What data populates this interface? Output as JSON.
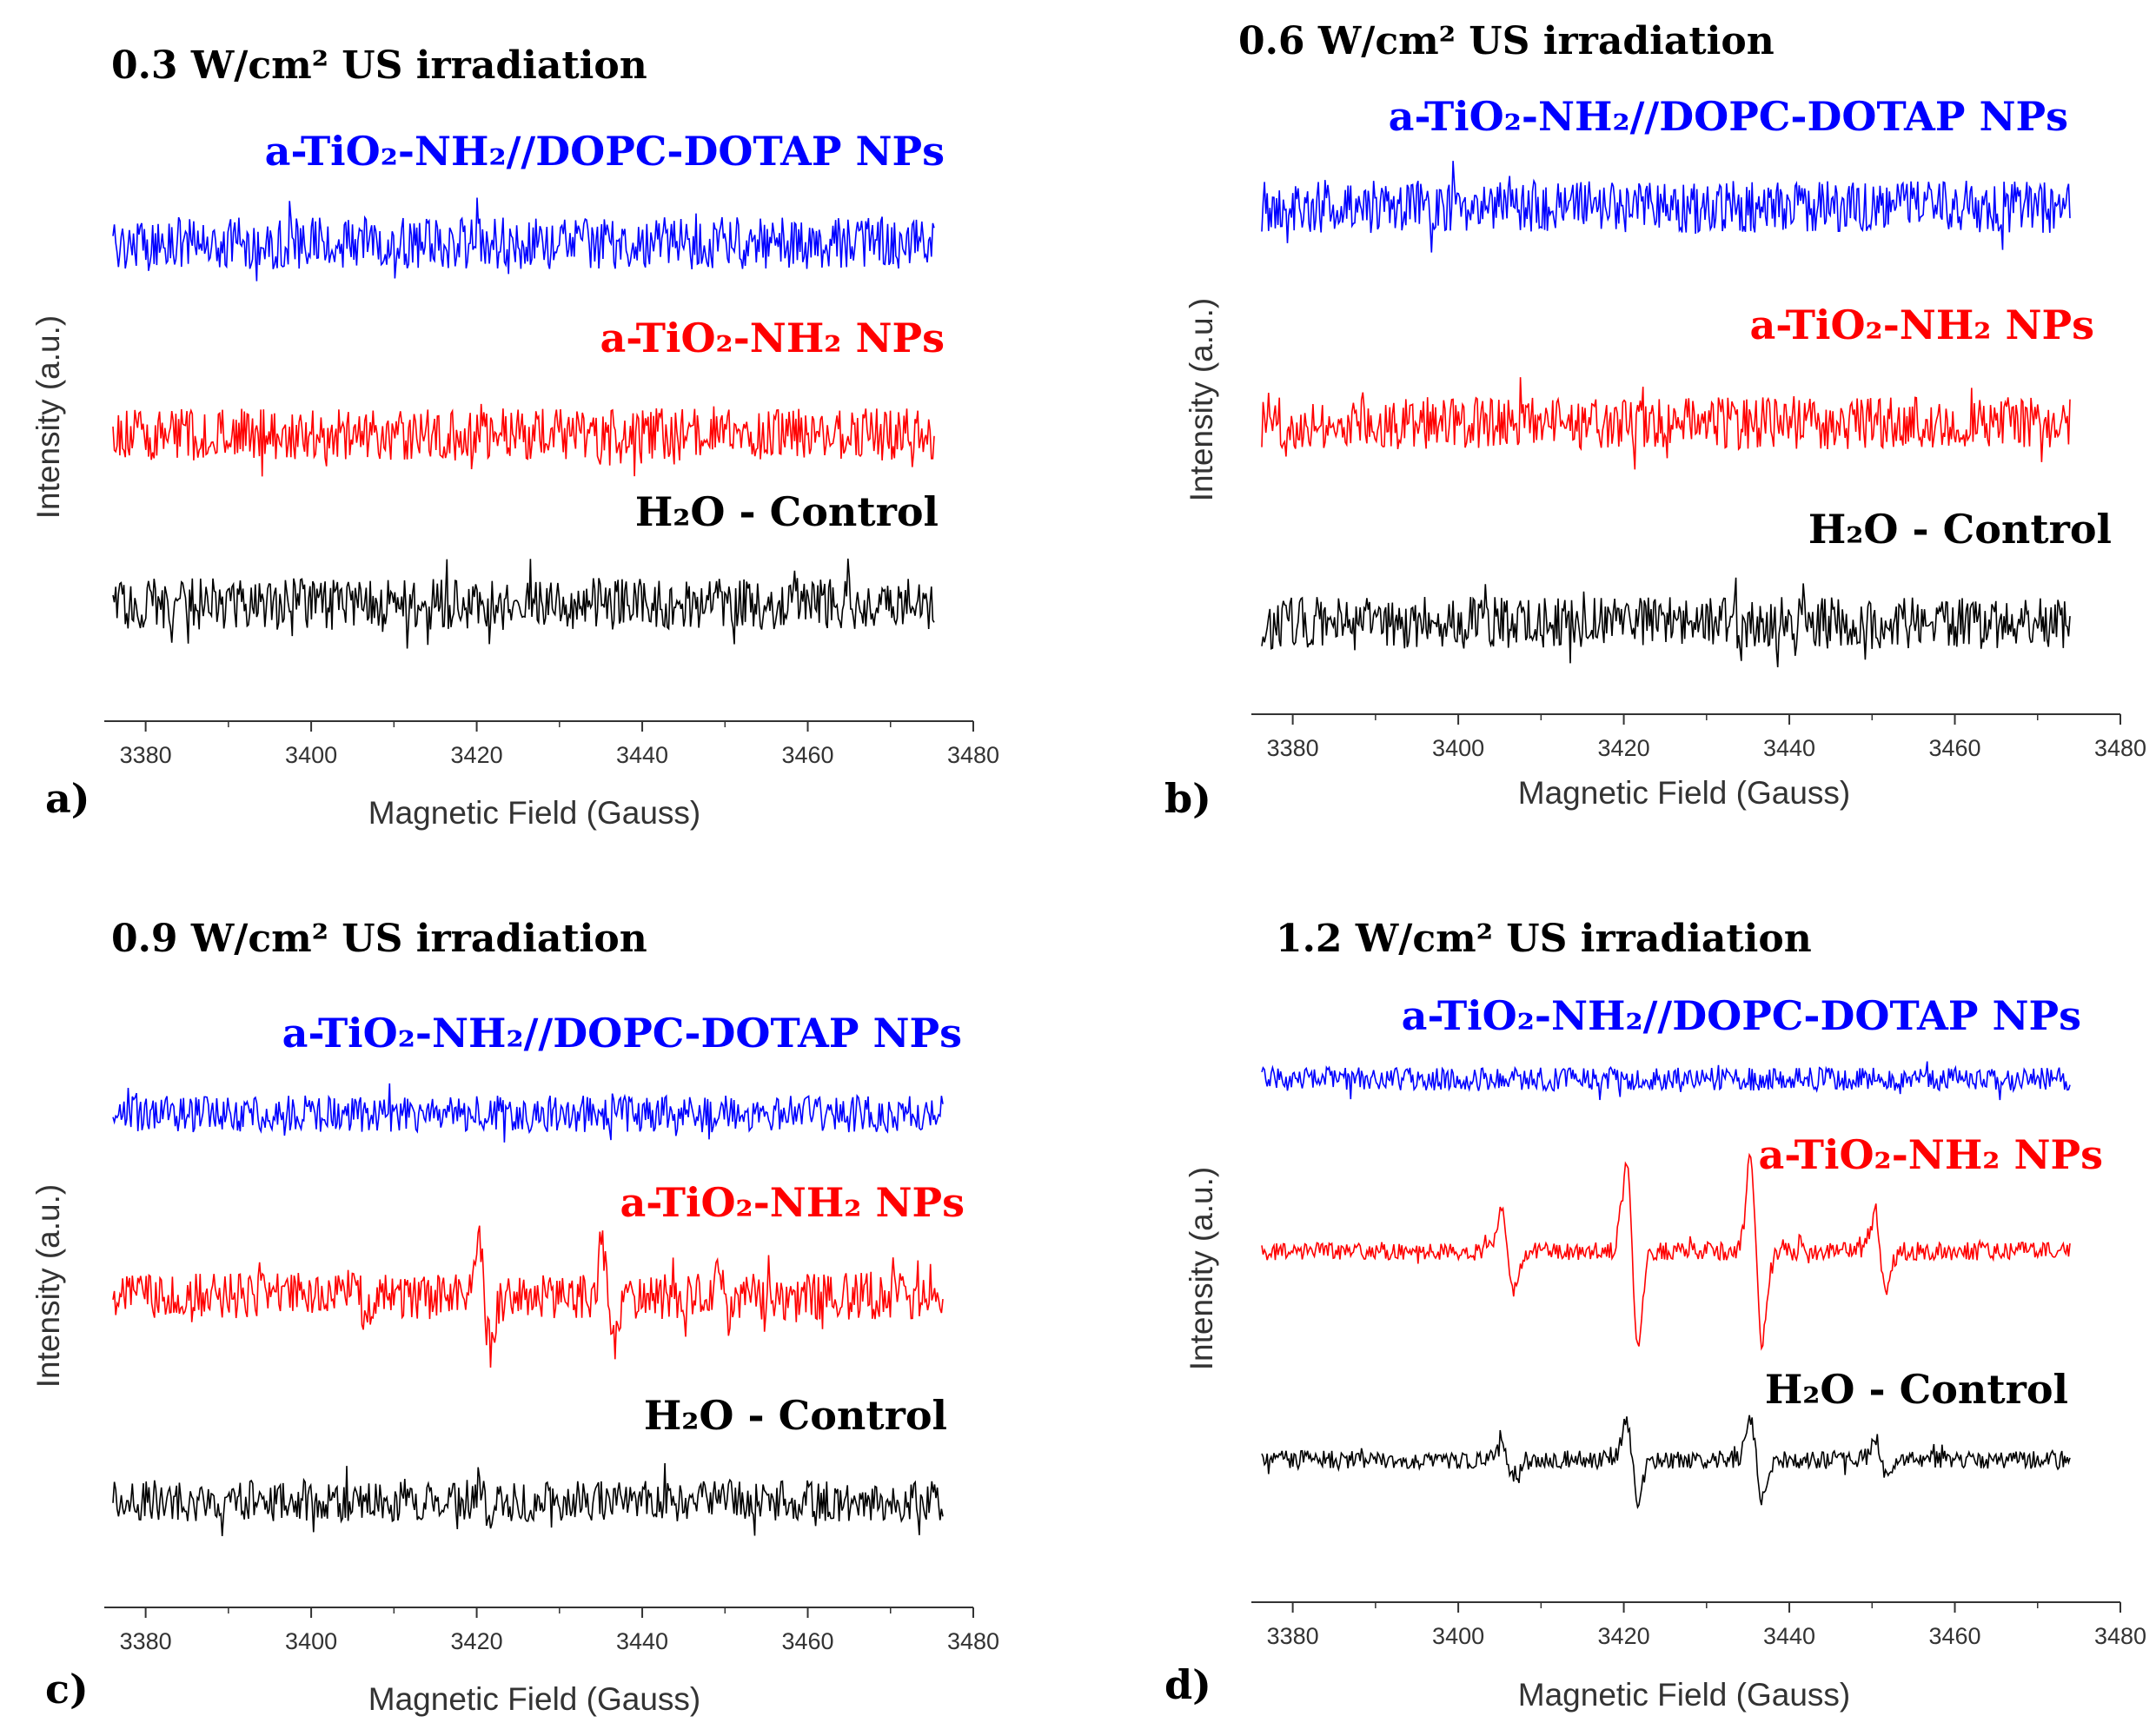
{
  "chart_data": [
    {
      "type": "line",
      "panel": "a)",
      "title": "0.3 W/cm² US irradiation",
      "xlabel": "Magnetic Field (Gauss)",
      "ylabel": "Intensity (a.u.)",
      "xlim": [
        3375,
        3480
      ],
      "x_ticks": [
        3380,
        3400,
        3420,
        3440,
        3460,
        3480
      ],
      "series": [
        {
          "name": "a-TiO₂-NH₂//DOPC-DOTAP NPs",
          "color": "#0000ff",
          "noise": 1.0,
          "peaks": []
        },
        {
          "name": "a-TiO₂-NH₂ NPs",
          "color": "#ff0000",
          "noise": 1.0,
          "peaks": []
        },
        {
          "name": "H₂O - Control",
          "color": "#000000",
          "noise": 1.0,
          "peaks": []
        }
      ]
    },
    {
      "type": "line",
      "panel": "b)",
      "title": "0.6 W/cm² US irradiation",
      "xlabel": "Magnetic Field (Gauss)",
      "ylabel": "Intensity (a.u.)",
      "xlim": [
        3375,
        3480
      ],
      "x_ticks": [
        3380,
        3400,
        3420,
        3440,
        3460,
        3480
      ],
      "series": [
        {
          "name": "a-TiO₂-NH₂//DOPC-DOTAP NPs",
          "color": "#0000ff",
          "noise": 1.0,
          "peaks": []
        },
        {
          "name": "a-TiO₂-NH₂ NPs",
          "color": "#ff0000",
          "noise": 1.0,
          "peaks": []
        },
        {
          "name": "H₂O - Control",
          "color": "#000000",
          "noise": 1.0,
          "peaks": []
        }
      ]
    },
    {
      "type": "line",
      "panel": "c)",
      "title": "0.9 W/cm² US irradiation",
      "xlabel": "Magnetic Field (Gauss)",
      "ylabel": "Intensity (a.u.)",
      "xlim": [
        3375,
        3480
      ],
      "x_ticks": [
        3380,
        3400,
        3420,
        3440,
        3460,
        3480
      ],
      "series": [
        {
          "name": "a-TiO₂-NH₂//DOPC-DOTAP NPs",
          "color": "#0000ff",
          "noise": 0.7,
          "peaks": []
        },
        {
          "name": "a-TiO₂-NH₂ NPs",
          "color": "#ff0000",
          "noise": 0.9,
          "peaks": [
            {
              "x": 3406,
              "amp": 0.9
            },
            {
              "x": 3421,
              "amp": 1.9
            },
            {
              "x": 3436,
              "amp": 1.8
            },
            {
              "x": 3450,
              "amp": 0.8
            }
          ]
        },
        {
          "name": "H₂O - Control",
          "color": "#000000",
          "noise": 0.8,
          "peaks": [
            {
              "x": 3421,
              "amp": 0.6
            }
          ]
        }
      ]
    },
    {
      "type": "line",
      "panel": "d)",
      "title": "1.2 W/cm² US irradiation",
      "xlabel": "Magnetic Field (Gauss)",
      "ylabel": "Intensity (a.u.)",
      "xlim": [
        3375,
        3480
      ],
      "x_ticks": [
        3380,
        3400,
        3420,
        3440,
        3460,
        3480
      ],
      "series": [
        {
          "name": "a-TiO₂-NH₂//DOPC-DOTAP NPs",
          "color": "#0000ff",
          "noise": 0.45,
          "peaks": []
        },
        {
          "name": "a-TiO₂-NH₂ NPs",
          "color": "#ff0000",
          "noise": 0.35,
          "peaks": [
            {
              "x": 3406,
              "amp": 1.6
            },
            {
              "x": 3421,
              "amp": 3.5
            },
            {
              "x": 3436,
              "amp": 3.5
            },
            {
              "x": 3451,
              "amp": 1.6
            }
          ]
        },
        {
          "name": "H₂O - Control",
          "color": "#000000",
          "noise": 0.35,
          "peaks": [
            {
              "x": 3406,
              "amp": 0.6
            },
            {
              "x": 3421,
              "amp": 1.5
            },
            {
              "x": 3436,
              "amp": 1.5
            },
            {
              "x": 3451,
              "amp": 0.6
            }
          ]
        }
      ]
    }
  ]
}
